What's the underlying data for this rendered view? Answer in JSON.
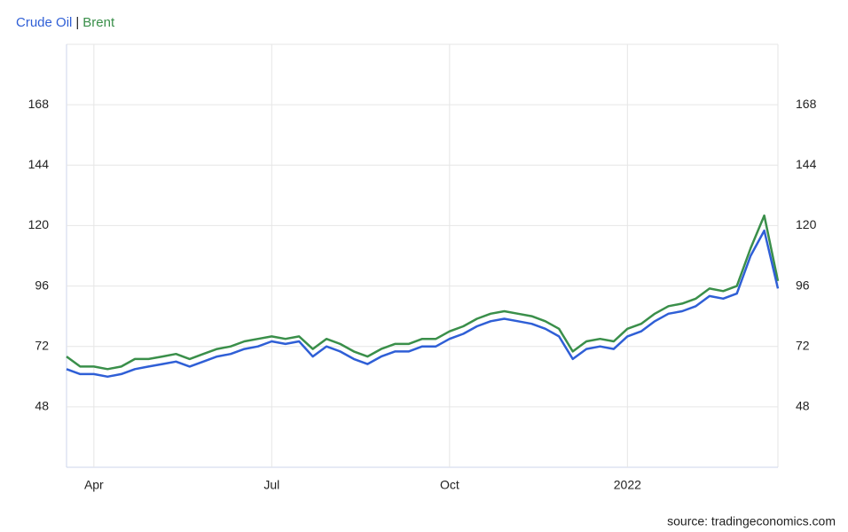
{
  "chart_data": {
    "type": "line",
    "series": [
      {
        "name": "Crude Oil",
        "color": "#2f5fd6",
        "values": [
          63,
          61,
          61,
          60,
          61,
          63,
          64,
          65,
          66,
          64,
          66,
          68,
          69,
          71,
          72,
          74,
          73,
          74,
          68,
          72,
          70,
          67,
          65,
          68,
          70,
          70,
          72,
          72,
          75,
          77,
          80,
          82,
          83,
          82,
          81,
          79,
          76,
          67,
          71,
          72,
          71,
          76,
          78,
          82,
          85,
          86,
          88,
          92,
          91,
          93,
          108,
          118,
          95
        ]
      },
      {
        "name": "Brent",
        "color": "#3a8f4a",
        "values": [
          68,
          64,
          64,
          63,
          64,
          67,
          67,
          68,
          69,
          67,
          69,
          71,
          72,
          74,
          75,
          76,
          75,
          76,
          71,
          75,
          73,
          70,
          68,
          71,
          73,
          73,
          75,
          75,
          78,
          80,
          83,
          85,
          86,
          85,
          84,
          82,
          79,
          70,
          74,
          75,
          74,
          79,
          81,
          85,
          88,
          89,
          91,
          95,
          94,
          96,
          111,
          124,
          98
        ]
      }
    ],
    "legend_separator": "|",
    "categories": [
      null,
      null,
      "Apr",
      null,
      null,
      null,
      null,
      null,
      null,
      null,
      null,
      null,
      null,
      null,
      null,
      "Jul",
      null,
      null,
      null,
      null,
      null,
      null,
      null,
      null,
      null,
      null,
      null,
      null,
      "Oct",
      null,
      null,
      null,
      null,
      null,
      null,
      null,
      null,
      null,
      null,
      null,
      null,
      "2022",
      null,
      null,
      null,
      null,
      null,
      null,
      null,
      null,
      null,
      null,
      null
    ],
    "ylim": [
      24,
      192
    ],
    "yticks": [
      48,
      72,
      96,
      120,
      144,
      168
    ],
    "grid": true,
    "source": "source: tradingeconomics.com"
  }
}
